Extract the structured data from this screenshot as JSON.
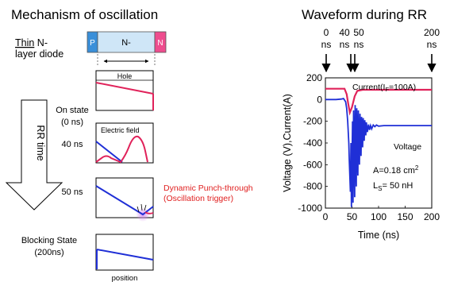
{
  "left": {
    "title": "Mechanism of oscillation",
    "diode": {
      "label_line1_prefix": "Thin",
      "label_line1_rest": " N-",
      "label_line2": "layer diode",
      "p_label": "P",
      "n_minus_label": "N-",
      "n_label": "N"
    },
    "rr_time_label": "RR time",
    "stages": [
      {
        "label_line1": "On state",
        "label_line2": "(0 ns)",
        "panel_text": "Hole"
      },
      {
        "label_line1": "40 ns",
        "label_line2": "",
        "panel_text": "Electric field"
      },
      {
        "label_line1": "50 ns",
        "label_line2": "",
        "panel_text": ""
      },
      {
        "label_line1": "Blocking State",
        "label_line2": "(200ns)",
        "panel_text": ""
      }
    ],
    "annotation_line1": "Dynamic Punch-through",
    "annotation_line2": "(Oscillation trigger)",
    "x_label": "position",
    "colors": {
      "hole": "#e0225a",
      "field": "#1f2fd6",
      "annotation": "#e02020",
      "p_region": "#3a8fd9",
      "n_minus_region": "#cfe6f7",
      "n_region": "#ee4d8e"
    }
  },
  "right": {
    "title": "Waveform during RR",
    "time_markers": [
      {
        "value": "0",
        "unit": "ns"
      },
      {
        "value": "40",
        "unit": "ns"
      },
      {
        "value": "50",
        "unit": "ns"
      },
      {
        "value": "200",
        "unit": "ns"
      }
    ],
    "chart_data": {
      "type": "line",
      "xlabel": "Time (ns)",
      "ylabel": "Voltage (V),Current(A)",
      "xlim": [
        0,
        200
      ],
      "ylim": [
        -1000,
        200
      ],
      "x_ticks": [
        "0",
        "50",
        "100",
        "150",
        "200"
      ],
      "y_ticks": [
        "200",
        "0",
        "-200",
        "-400",
        "-600",
        "-800",
        "-1000"
      ],
      "series": [
        {
          "name": "Current(IF=100A)",
          "color": "#e0225a",
          "x": [
            0,
            20,
            30,
            36,
            40,
            43,
            46,
            50,
            55,
            60,
            70,
            80,
            100,
            150,
            200
          ],
          "values": [
            100,
            100,
            100,
            100,
            50,
            -40,
            -120,
            -70,
            30,
            80,
            90,
            90,
            90,
            90,
            90
          ]
        },
        {
          "name": "Voltage",
          "color": "#1f2fd6",
          "x": [
            0,
            20,
            30,
            34,
            38,
            40,
            42,
            44,
            45,
            47,
            48,
            49,
            51,
            52,
            53,
            55,
            56,
            58,
            59,
            61,
            62,
            64,
            65,
            67,
            68,
            70,
            71,
            73,
            74,
            76,
            77,
            79,
            81,
            83,
            85,
            87,
            90,
            93,
            96,
            100,
            110,
            120,
            150,
            200
          ],
          "values": [
            0,
            0,
            5,
            10,
            -20,
            -80,
            -200,
            -400,
            -560,
            -850,
            -400,
            -990,
            -200,
            -950,
            -100,
            -900,
            -50,
            -800,
            -80,
            -700,
            -100,
            -600,
            -130,
            -520,
            -160,
            -440,
            -170,
            -380,
            -190,
            -330,
            -210,
            -300,
            -230,
            -280,
            -240,
            -270,
            -235,
            -250,
            -235,
            -245,
            -240,
            -240,
            -240,
            -240
          ]
        }
      ],
      "series_labels": {
        "current_prefix": "Current(I",
        "current_sub": "F",
        "current_suffix": "=100A)",
        "voltage": "Voltage"
      },
      "annotation": {
        "area_prefix": "A=0.18 cm",
        "area_sup": "2",
        "ls_prefix": "L",
        "ls_sub": "S",
        "ls_suffix": "= 50 nH"
      }
    }
  }
}
